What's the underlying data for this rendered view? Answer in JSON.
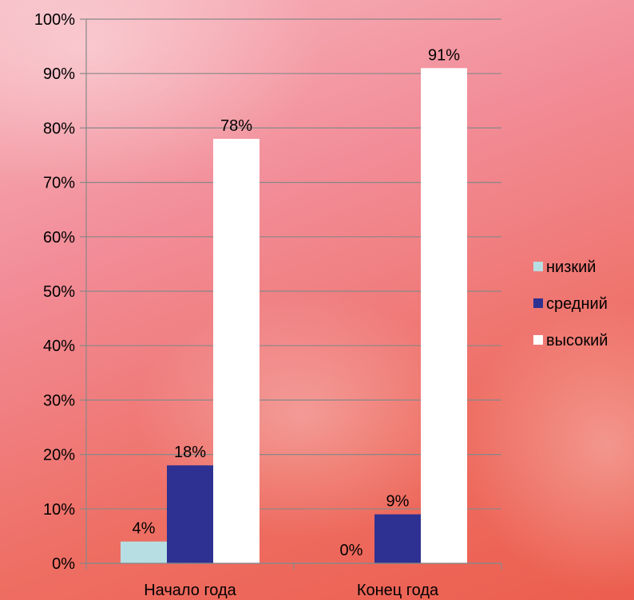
{
  "chart_data": {
    "type": "bar",
    "categories": [
      "Начало года",
      "Конец года"
    ],
    "series": [
      {
        "name": "низкий",
        "values": [
          4,
          0
        ],
        "labels": [
          "4%",
          "0%"
        ],
        "color": "#b7dfe3"
      },
      {
        "name": "средний",
        "values": [
          18,
          9
        ],
        "labels": [
          "18%",
          "9%"
        ],
        "color": "#2e3192"
      },
      {
        "name": "высокий",
        "values": [
          78,
          91
        ],
        "labels": [
          "78%",
          "91%"
        ],
        "color": "#ffffff"
      }
    ],
    "ylim": [
      0,
      100
    ],
    "yticks": [
      "0%",
      "10%",
      "20%",
      "30%",
      "40%",
      "50%",
      "60%",
      "70%",
      "80%",
      "90%",
      "100%"
    ],
    "grid": true,
    "legend": "right",
    "gridline_color": "#888888"
  }
}
